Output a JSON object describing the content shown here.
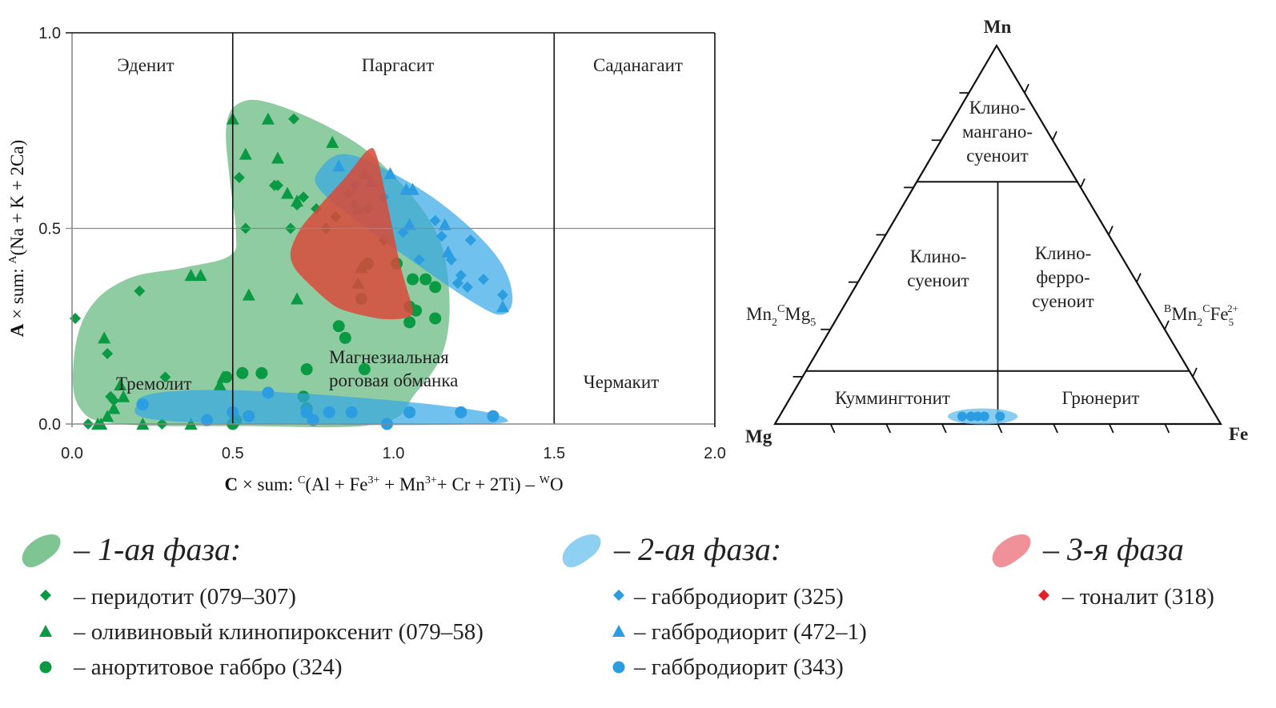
{
  "chart_data": [
    {
      "type": "scatter",
      "xlim": [
        0.0,
        2.0
      ],
      "ylim": [
        0.0,
        1.0
      ],
      "x_ticks": [
        "0.0",
        "0.5",
        "1.0",
        "1.5",
        "2.0"
      ],
      "y_ticks": [
        "0.0",
        "0.5",
        "1.0"
      ],
      "xlabel": {
        "bold": "C",
        "rest": " × sum: ",
        "sup1": "C",
        "formula": "(Al + Fe",
        "sup2": "3+",
        "f2": " + Mn",
        "sup3": "3+",
        "f3": "+ Cr + 2Ti) – ",
        "sup4": "W",
        "f4": "O"
      },
      "ylabel": {
        "bold": "A",
        "rest": " × sum: ",
        "sup": "A",
        "formula": "(Na + K + 2Ca)"
      },
      "grid": {
        "horizontal": [
          0.5
        ],
        "vertical": [
          0.5,
          1.5
        ]
      },
      "field_labels": {
        "edenite": "Эденит",
        "pargasite": "Паргасит",
        "sadanagaite": "Саданагаит",
        "tremolite": "Тремолит",
        "mg_hornblende_1": "Магнезиальная",
        "mg_hornblende_2": "роговая обманка",
        "tschermakite": "Чермакит"
      },
      "colors": {
        "green": "#0a9a43",
        "blue": "#2b9de0",
        "green_field": "#7fc594",
        "blue_field": "#33a7e6",
        "red_field": "#d9493a"
      },
      "fields": [
        {
          "phase": "1",
          "color": "#7fc594",
          "opacity": 0.88,
          "polygon": [
            [
              0.48,
              0.76
            ],
            [
              0.52,
              0.82
            ],
            [
              0.62,
              0.82
            ],
            [
              0.82,
              0.75
            ],
            [
              0.97,
              0.66
            ],
            [
              1.12,
              0.51
            ],
            [
              1.17,
              0.37
            ],
            [
              1.16,
              0.2
            ],
            [
              1.07,
              0.08
            ],
            [
              0.95,
              0.0
            ],
            [
              0.52,
              -0.005
            ],
            [
              0.15,
              0.0
            ],
            [
              0.025,
              0.04
            ],
            [
              0.005,
              0.16
            ],
            [
              0.05,
              0.29
            ],
            [
              0.17,
              0.37
            ],
            [
              0.35,
              0.4
            ],
            [
              0.49,
              0.43
            ],
            [
              0.51,
              0.49
            ],
            [
              0.49,
              0.63
            ]
          ]
        },
        {
          "phase": "2",
          "color": "#33a7e6",
          "opacity": 0.7,
          "polygon": [
            [
              0.77,
              0.65
            ],
            [
              0.85,
              0.69
            ],
            [
              1.0,
              0.64
            ],
            [
              1.17,
              0.55
            ],
            [
              1.32,
              0.43
            ],
            [
              1.37,
              0.33
            ],
            [
              1.34,
              0.28
            ],
            [
              1.25,
              0.31
            ],
            [
              1.07,
              0.41
            ],
            [
              0.9,
              0.51
            ],
            [
              0.77,
              0.6
            ]
          ]
        },
        {
          "phase": "2",
          "color": "#33a7e6",
          "opacity": 0.7,
          "polygon": [
            [
              0.2,
              0.05
            ],
            [
              0.27,
              0.08
            ],
            [
              0.52,
              0.086
            ],
            [
              0.9,
              0.067
            ],
            [
              1.22,
              0.04
            ],
            [
              1.35,
              0.014
            ],
            [
              1.27,
              0.0
            ],
            [
              0.77,
              -0.002
            ],
            [
              0.27,
              0.01
            ]
          ]
        },
        {
          "phase": "3",
          "color": "#d9493a",
          "opacity": 0.85,
          "polygon": [
            [
              0.92,
              0.7
            ],
            [
              0.95,
              0.68
            ],
            [
              1.02,
              0.41
            ],
            [
              1.06,
              0.29
            ],
            [
              1.03,
              0.27
            ],
            [
              0.95,
              0.27
            ],
            [
              0.82,
              0.3
            ],
            [
              0.7,
              0.39
            ],
            [
              0.68,
              0.44
            ],
            [
              0.72,
              0.51
            ],
            [
              0.85,
              0.63
            ]
          ]
        }
      ],
      "series": [
        {
          "name": "перидотит (079–307)",
          "marker": "diamond",
          "color": "#0a9a43",
          "points": [
            [
              0.01,
              0.27
            ],
            [
              0.21,
              0.34
            ],
            [
              0.11,
              0.18
            ],
            [
              0.52,
              0.63
            ],
            [
              0.69,
              0.78
            ],
            [
              0.54,
              0.5
            ],
            [
              0.68,
              0.5
            ],
            [
              0.64,
              0.61
            ],
            [
              0.63,
              0.61
            ],
            [
              0.7,
              0.56
            ],
            [
              0.72,
              0.58
            ],
            [
              0.76,
              0.55
            ],
            [
              0.29,
              0.12
            ],
            [
              0.12,
              0.07
            ],
            [
              0.13,
              0.06
            ],
            [
              0.05,
              0.0
            ],
            [
              0.28,
              0.0
            ],
            [
              0.79,
              0.5
            ],
            [
              0.86,
              0.59
            ],
            [
              0.88,
              0.56
            ],
            [
              0.92,
              0.55
            ],
            [
              0.97,
              0.47
            ],
            [
              0.82,
              0.53
            ]
          ]
        },
        {
          "name": "оливиновый клинопироксенит (079–58)",
          "marker": "triangle",
          "color": "#0a9a43",
          "points": [
            [
              0.5,
              0.78
            ],
            [
              0.61,
              0.78
            ],
            [
              0.54,
              0.69
            ],
            [
              0.64,
              0.68
            ],
            [
              0.67,
              0.59
            ],
            [
              0.7,
              0.57
            ],
            [
              0.81,
              0.72
            ],
            [
              0.37,
              0.38
            ],
            [
              0.4,
              0.38
            ],
            [
              0.1,
              0.22
            ],
            [
              0.55,
              0.33
            ],
            [
              0.7,
              0.32
            ],
            [
              0.15,
              0.1
            ],
            [
              0.16,
              0.07
            ],
            [
              0.13,
              0.04
            ],
            [
              0.11,
              0.02
            ],
            [
              0.08,
              0.0
            ],
            [
              0.09,
              0.0
            ],
            [
              0.22,
              0.0
            ],
            [
              0.37,
              0.0
            ],
            [
              0.46,
              0.1
            ],
            [
              0.47,
              0.12
            ],
            [
              0.9,
              0.4
            ],
            [
              0.89,
              0.36
            ],
            [
              0.91,
              0.64
            ],
            [
              0.89,
              0.55
            ]
          ]
        },
        {
          "name": "анортитовое габбро (324)",
          "marker": "circle",
          "color": "#0a9a43",
          "points": [
            [
              0.53,
              0.13
            ],
            [
              0.59,
              0.13
            ],
            [
              0.73,
              0.14
            ],
            [
              0.83,
              0.25
            ],
            [
              0.85,
              0.22
            ],
            [
              0.91,
              0.14
            ],
            [
              1.06,
              0.37
            ],
            [
              1.1,
              0.37
            ],
            [
              1.13,
              0.35
            ],
            [
              1.07,
              0.29
            ],
            [
              1.05,
              0.26
            ],
            [
              1.13,
              0.27
            ],
            [
              0.92,
              0.41
            ],
            [
              1.01,
              0.41
            ],
            [
              0.9,
              0.32
            ],
            [
              1.05,
              0.3
            ],
            [
              0.48,
              0.12
            ],
            [
              0.5,
              0.0
            ],
            [
              0.72,
              0.07
            ],
            [
              0.73,
              0.04
            ],
            [
              0.51,
              0.01
            ]
          ]
        },
        {
          "name": "габбродиорит (325)",
          "marker": "diamond",
          "color": "#2b9de0",
          "points": [
            [
              1.13,
              0.52
            ],
            [
              1.24,
              0.47
            ],
            [
              1.18,
              0.42
            ],
            [
              1.21,
              0.38
            ],
            [
              1.28,
              0.37
            ],
            [
              1.23,
              0.35
            ],
            [
              1.34,
              0.33
            ],
            [
              1.08,
              0.42
            ],
            [
              1.03,
              0.49
            ],
            [
              0.97,
              0.58
            ],
            [
              0.88,
              0.61
            ],
            [
              1.15,
              0.48
            ],
            [
              1.2,
              0.36
            ]
          ]
        },
        {
          "name": "габбродиорит (472–1)",
          "marker": "triangle",
          "color": "#2b9de0",
          "points": [
            [
              0.83,
              0.66
            ],
            [
              0.99,
              0.64
            ],
            [
              1.04,
              0.6
            ],
            [
              1.06,
              0.6
            ],
            [
              1.05,
              0.51
            ],
            [
              1.16,
              0.51
            ],
            [
              1.34,
              0.3
            ],
            [
              0.93,
              0.62
            ],
            [
              1.17,
              0.44
            ]
          ]
        },
        {
          "name": "габбродиорит (343)",
          "marker": "circle",
          "color": "#2b9de0",
          "points": [
            [
              0.42,
              0.01
            ],
            [
              0.61,
              0.08
            ],
            [
              0.5,
              0.03
            ],
            [
              0.55,
              0.02
            ],
            [
              0.73,
              0.03
            ],
            [
              0.8,
              0.03
            ],
            [
              0.87,
              0.03
            ],
            [
              0.98,
              0.0
            ],
            [
              1.05,
              0.03
            ],
            [
              1.21,
              0.03
            ],
            [
              1.31,
              0.02
            ],
            [
              0.22,
              0.05
            ],
            [
              0.75,
              0.01
            ]
          ]
        },
        {
          "name": "тоналит (318)",
          "marker": "diamond",
          "color": "#e0202a",
          "points": []
        }
      ]
    },
    {
      "type": "ternary",
      "apices": {
        "top": "Mn",
        "left": "Mg",
        "right": "Fe"
      },
      "side_labels": {
        "left_a": "Mn",
        "left_sub1": "2",
        "left_sup": "C",
        "left_b": "Mg",
        "left_sub2": "5",
        "right_sup1": "B",
        "right_a": "Mn",
        "right_sub1": "2",
        "right_sup2": "C",
        "right_b": "Fe",
        "right_sub2": "5",
        "right_sup3": "2+"
      },
      "mn_boundaries": [
        0.14,
        0.64
      ],
      "fe_boundary": 0.5,
      "field_labels": {
        "clinomangano_1": "Клино-",
        "clinomangano_2": "мангано-",
        "clinomangano_3": "суеноит",
        "clinosuenoite_1": "Клино-",
        "clinosuenoite_2": "суеноит",
        "clinoferro_1": "Клино-",
        "clinoferro_2": "ферро-",
        "clinoferro_3": "суеноит",
        "cummingtonite": "Куммингтонит",
        "grunerite": "Грюнерит"
      },
      "points": [
        {
          "series": "габбродиорит (343)",
          "color": "#2b9de0",
          "values": [
            {
              "fe": 0.41,
              "mn": 0.02
            },
            {
              "fe": 0.43,
              "mn": 0.02
            },
            {
              "fe": 0.445,
              "mn": 0.02
            },
            {
              "fe": 0.46,
              "mn": 0.02
            },
            {
              "fe": 0.495,
              "mn": 0.02
            }
          ]
        }
      ]
    }
  ],
  "legend": {
    "phase1": "– 1-ая фаза:",
    "phase2": "– 2-ая фаза:",
    "phase3": "– 3-я фаза",
    "items": [
      "– перидотит (079–307)",
      "– оливиновый клинопироксенит (079–58)",
      "– анортитовое габбро (324)",
      "– габбродиорит (325)",
      "– габбродиорит (472–1)",
      "– габбродиорит (343)",
      "– тоналит (318)"
    ]
  }
}
